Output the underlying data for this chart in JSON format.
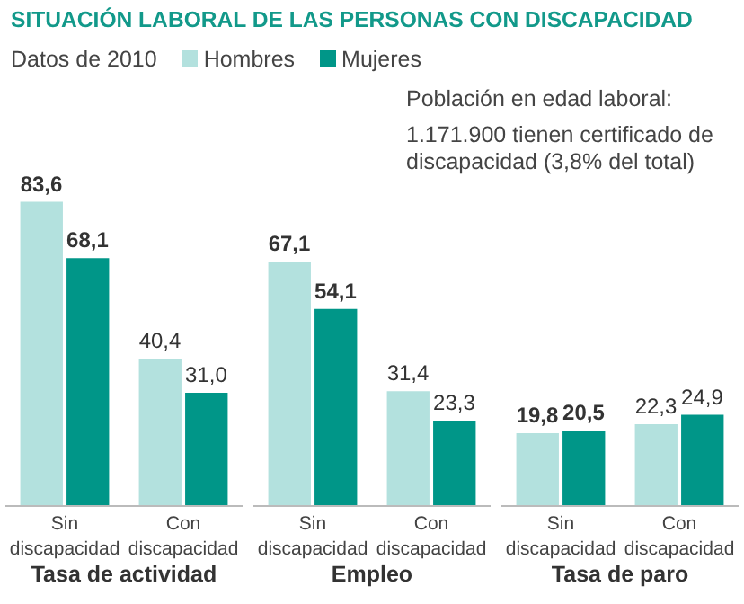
{
  "chart_data": [
    {
      "type": "bar",
      "title": "SITUACIÓN LABORAL DE LAS PERSONAS CON DISCAPACIDAD",
      "subtitle": "Datos de 2010",
      "legend": "top",
      "xlabel": "Tasa de actividad",
      "categories": [
        "Sin discapacidad",
        "Con discapacidad"
      ],
      "series": [
        {
          "name": "Hombres",
          "color": "#b3e1de",
          "values": [
            83.6,
            40.4
          ],
          "value_labels": [
            "83,6",
            "40,4"
          ]
        },
        {
          "name": "Mujeres",
          "color": "#009688",
          "values": [
            68.1,
            31.0
          ],
          "value_labels": [
            "68,1",
            "31,0"
          ]
        }
      ]
    },
    {
      "type": "bar",
      "xlabel": "Empleo",
      "categories": [
        "Sin discapacidad",
        "Con discapacidad"
      ],
      "annotations": [
        "Población en edad laboral:",
        "1.171.900 tienen certificado de discapacidad (3,8% del total)"
      ],
      "series": [
        {
          "color": "#b3e1de",
          "values": [
            67.1,
            31.4
          ],
          "value_labels": [
            "67,1",
            "31,4"
          ]
        },
        {
          "color": "#009688",
          "values": [
            54.1,
            23.3
          ],
          "value_labels": [
            "54,1",
            "23,3"
          ]
        }
      ]
    },
    {
      "type": "bar",
      "xlabel": "Tasa de paro",
      "categories": [
        "Sin discapacidad",
        "Con discapacidad"
      ],
      "series": [
        {
          "color": "#b3e1de",
          "values": [
            19.8,
            22.3
          ],
          "value_labels": [
            "19,8",
            "22,3"
          ]
        },
        {
          "color": "#009688",
          "values": [
            20.5,
            24.9
          ],
          "value_labels": [
            "20,5",
            "24,9"
          ]
        }
      ]
    }
  ]
}
